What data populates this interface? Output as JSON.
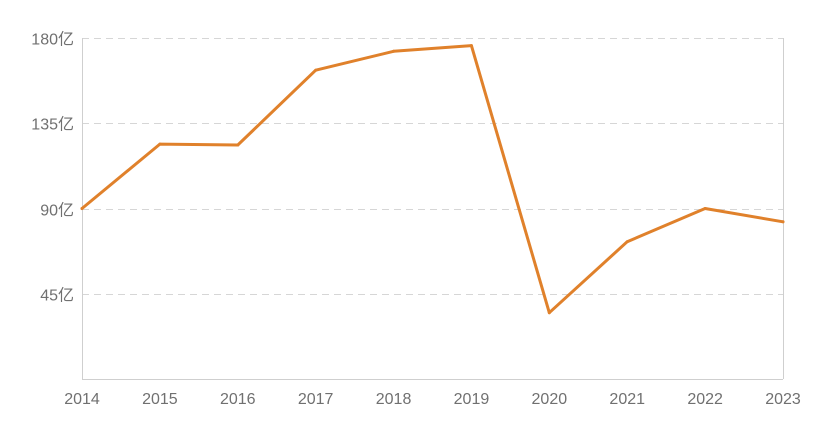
{
  "chart_data": {
    "type": "line",
    "x": [
      "2014",
      "2015",
      "2016",
      "2017",
      "2018",
      "2019",
      "2020",
      "2021",
      "2022",
      "2023"
    ],
    "series": [
      {
        "values": [
          90,
          124,
          123.5,
          163,
          173,
          176,
          35,
          72.5,
          90,
          83
        ]
      }
    ],
    "y_ticks": [
      {
        "value": 180,
        "label": "180亿"
      },
      {
        "value": 135,
        "label": "135亿"
      },
      {
        "value": 90,
        "label": "90亿"
      },
      {
        "value": 45,
        "label": "45亿"
      }
    ],
    "ylim": [
      0,
      180
    ],
    "grid": true,
    "legend": "none",
    "colors": {
      "line": "#E0812B",
      "grid": "#D6D6D6",
      "axis": "#CFCFCF",
      "text": "#707070"
    }
  }
}
